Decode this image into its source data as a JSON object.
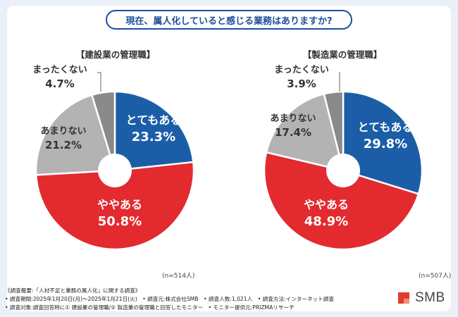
{
  "title": "現在、属人化していると感じる業務はありますか?",
  "colors": {
    "totemo": "#1b5ea7",
    "yaya": "#e32a2f",
    "amari": "#b3b3b3",
    "mattaku": "#8a8a8a",
    "title": "#1b4f9c",
    "logo": "#e13b2d"
  },
  "chart_data": [
    {
      "type": "pie",
      "title": "【建設業の管理職】",
      "n_label": "(n=514人)",
      "donut": true,
      "slices": [
        {
          "label": "とてもある",
          "value": 23.3,
          "value_text": "23.3%"
        },
        {
          "label": "ややある",
          "value": 50.8,
          "value_text": "50.8%"
        },
        {
          "label": "あまりない",
          "value": 21.2,
          "value_text": "21.2%"
        },
        {
          "label": "まったくない",
          "value": 4.7,
          "value_text": "4.7%"
        }
      ]
    },
    {
      "type": "pie",
      "title": "【製造業の管理職】",
      "n_label": "(n=507人)",
      "donut": true,
      "slices": [
        {
          "label": "とてもある",
          "value": 29.8,
          "value_text": "29.8%"
        },
        {
          "label": "ややある",
          "value": 48.9,
          "value_text": "48.9%"
        },
        {
          "label": "あまりない",
          "value": 17.4,
          "value_text": "17.4%"
        },
        {
          "label": "まったくない",
          "value": 3.9,
          "value_text": "3.9%"
        }
      ]
    }
  ],
  "footer": {
    "line1": "《調査概要:「人材不足と業務の属人化」に関する調査》",
    "line2": "• 調査期間:2025年1月20日(月)〜2025年1月21日(火)　• 調査元:株式会社SMB　• 調査人数:1,021人　• 調査方法:インターネット調査",
    "line3": "• 調査対象:調査回答時に① 建設業の管理職/② 製造業の管理職と回答したモニター　• モニター提供元:PRIZMAリサーチ"
  },
  "logo": {
    "text": "SMB"
  }
}
